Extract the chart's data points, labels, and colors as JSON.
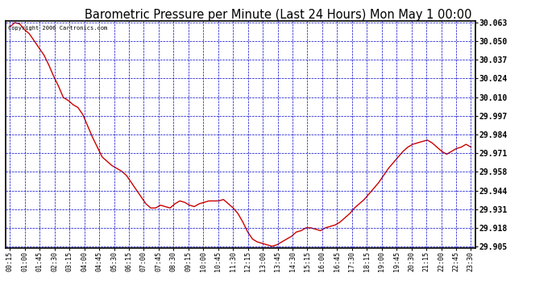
{
  "title": "Barometric Pressure per Minute (Last 24 Hours) Mon May 1 00:00",
  "copyright": "Copyright 2006 Cartronics.com",
  "ylim": [
    29.905,
    30.063
  ],
  "yticks": [
    29.905,
    29.918,
    29.931,
    29.944,
    29.958,
    29.971,
    29.984,
    29.997,
    30.01,
    30.024,
    30.037,
    30.05,
    30.063
  ],
  "xtick_labels": [
    "00:15",
    "01:00",
    "01:45",
    "02:30",
    "03:15",
    "04:00",
    "04:45",
    "05:30",
    "06:15",
    "07:00",
    "07:45",
    "08:30",
    "09:15",
    "10:00",
    "10:45",
    "11:30",
    "12:15",
    "13:00",
    "13:45",
    "14:30",
    "15:15",
    "16:00",
    "16:45",
    "17:30",
    "18:15",
    "19:00",
    "19:45",
    "20:30",
    "21:15",
    "22:00",
    "22:45",
    "23:30"
  ],
  "line_color": "#cc0000",
  "bg_color": "#ffffff",
  "grid_color": "#0000cc",
  "title_color": "#000000",
  "pressure_data": [
    30.06,
    30.063,
    30.062,
    30.058,
    30.055,
    30.05,
    30.045,
    30.04,
    30.033,
    30.025,
    30.018,
    30.01,
    30.008,
    30.005,
    30.003,
    29.998,
    29.99,
    29.982,
    29.975,
    29.968,
    29.965,
    29.962,
    29.96,
    29.958,
    29.955,
    29.95,
    29.945,
    29.94,
    29.935,
    29.932,
    29.932,
    29.934,
    29.933,
    29.932,
    29.935,
    29.937,
    29.936,
    29.934,
    29.933,
    29.935,
    29.936,
    29.937,
    29.937,
    29.937,
    29.938,
    29.935,
    29.932,
    29.928,
    29.922,
    29.915,
    29.91,
    29.908,
    29.907,
    29.906,
    29.905,
    29.906,
    29.908,
    29.91,
    29.912,
    29.915,
    29.916,
    29.918,
    29.918,
    29.917,
    29.916,
    29.918,
    29.919,
    29.92,
    29.922,
    29.925,
    29.928,
    29.932,
    29.935,
    29.938,
    29.942,
    29.946,
    29.95,
    29.955,
    29.96,
    29.964,
    29.968,
    29.972,
    29.975,
    29.977,
    29.978,
    29.979,
    29.98,
    29.978,
    29.975,
    29.972,
    29.97,
    29.972,
    29.974,
    29.975,
    29.977,
    29.975
  ]
}
